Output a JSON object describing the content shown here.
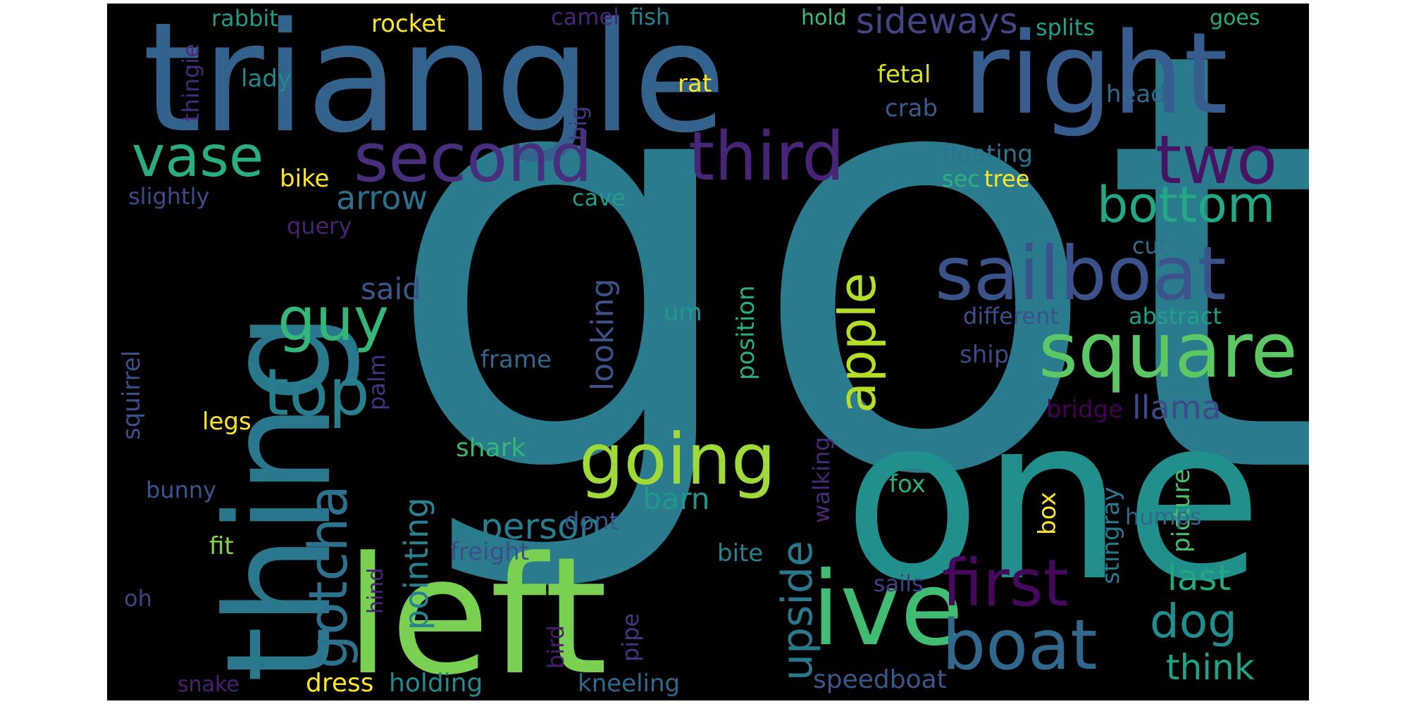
{
  "word_cloud": {
    "background": "#000000",
    "palette": [
      "#440154",
      "#472c7a",
      "#3b518b",
      "#2c718e",
      "#21908d",
      "#27ad81",
      "#5cc863",
      "#aadc32",
      "#fde725"
    ],
    "words": [
      {
        "text": "got",
        "color": "#2a7b8e"
      },
      {
        "text": "triangle",
        "color": "#33638d"
      },
      {
        "text": "one",
        "color": "#21908d"
      },
      {
        "text": "left",
        "color": "#7ad151"
      },
      {
        "text": "thing",
        "color": "#2a788e"
      },
      {
        "text": "right",
        "color": "#365d8d"
      },
      {
        "text": "ive",
        "color": "#40bd72"
      },
      {
        "text": "square",
        "color": "#5cc863"
      },
      {
        "text": "sailboat",
        "color": "#3b528b"
      },
      {
        "text": "boat",
        "color": "#31688e"
      },
      {
        "text": "going",
        "color": "#a0da39"
      },
      {
        "text": "second",
        "color": "#472f7d"
      },
      {
        "text": "third",
        "color": "#482576"
      },
      {
        "text": "first",
        "color": "#46085c"
      },
      {
        "text": "two",
        "color": "#471365"
      },
      {
        "text": "top",
        "color": "#277f8e"
      },
      {
        "text": "guy",
        "color": "#35b779"
      },
      {
        "text": "gotcha",
        "color": "#2c728e"
      },
      {
        "text": "vase",
        "color": "#29af7f"
      },
      {
        "text": "bottom",
        "color": "#22a884"
      },
      {
        "text": "apple",
        "color": "#b5de2b"
      },
      {
        "text": "upside",
        "color": "#2a788e"
      },
      {
        "text": "dog",
        "color": "#228d8d"
      },
      {
        "text": "sideways",
        "color": "#414487"
      },
      {
        "text": "llama",
        "color": "#3e4989"
      },
      {
        "text": "pointing",
        "color": "#26828e"
      },
      {
        "text": "person",
        "color": "#287c8e"
      },
      {
        "text": "last",
        "color": "#22a785"
      },
      {
        "text": "think",
        "color": "#20a386"
      },
      {
        "text": "arrow",
        "color": "#2d708e"
      },
      {
        "text": "said",
        "color": "#38588c"
      },
      {
        "text": "barn",
        "color": "#1f988b"
      },
      {
        "text": "looking",
        "color": "#3b528b"
      },
      {
        "text": "rabbit",
        "color": "#1e9c89"
      },
      {
        "text": "rocket",
        "color": "#fde725"
      },
      {
        "text": "camel",
        "color": "#482677"
      },
      {
        "text": "fish",
        "color": "#26828e"
      },
      {
        "text": "hold",
        "color": "#3dbc74"
      },
      {
        "text": "splits",
        "color": "#1fa088"
      },
      {
        "text": "goes",
        "color": "#25ab82"
      },
      {
        "text": "lady",
        "color": "#23898e"
      },
      {
        "text": "fetal",
        "color": "#d8e219"
      },
      {
        "text": "rat",
        "color": "#fde725"
      },
      {
        "text": "head",
        "color": "#31688e"
      },
      {
        "text": "crab",
        "color": "#38598c"
      },
      {
        "text": "thingie",
        "color": "#472a7a"
      },
      {
        "text": "big",
        "color": "#453781"
      },
      {
        "text": "floating",
        "color": "#2b748e"
      },
      {
        "text": "sec",
        "color": "#2db27d"
      },
      {
        "text": "tree",
        "color": "#fde725"
      },
      {
        "text": "bike",
        "color": "#fde725"
      },
      {
        "text": "slightly",
        "color": "#3e4a89"
      },
      {
        "text": "cave",
        "color": "#1f9e89"
      },
      {
        "text": "query",
        "color": "#482173"
      },
      {
        "text": "cut",
        "color": "#2e6f8e"
      },
      {
        "text": "different",
        "color": "#3b518b"
      },
      {
        "text": "abstract",
        "color": "#1fa188"
      },
      {
        "text": "um",
        "color": "#1f998a"
      },
      {
        "text": "position",
        "color": "#29af7f"
      },
      {
        "text": "frame",
        "color": "#31678e"
      },
      {
        "text": "ship",
        "color": "#3f4788"
      },
      {
        "text": "palm",
        "color": "#46327e"
      },
      {
        "text": "squirrel",
        "color": "#3b518b"
      },
      {
        "text": "bridge",
        "color": "#440154"
      },
      {
        "text": "legs",
        "color": "#fde725"
      },
      {
        "text": "shark",
        "color": "#35b779"
      },
      {
        "text": "walking",
        "color": "#482878"
      },
      {
        "text": "fox",
        "color": "#2ab07f"
      },
      {
        "text": "stingray",
        "color": "#2a788e"
      },
      {
        "text": "picture",
        "color": "#4ac16d"
      },
      {
        "text": "box",
        "color": "#fde725"
      },
      {
        "text": "bunny",
        "color": "#39568c"
      },
      {
        "text": "dont",
        "color": "#38588c"
      },
      {
        "text": "humps",
        "color": "#31678e"
      },
      {
        "text": "fit",
        "color": "#86d549"
      },
      {
        "text": "freight",
        "color": "#3e4c8a"
      },
      {
        "text": "bite",
        "color": "#26828e"
      },
      {
        "text": "hind",
        "color": "#482677"
      },
      {
        "text": "sails",
        "color": "#433d84"
      },
      {
        "text": "oh",
        "color": "#414487"
      },
      {
        "text": "bird",
        "color": "#481c6e"
      },
      {
        "text": "pipe",
        "color": "#453781"
      },
      {
        "text": "snake",
        "color": "#482173"
      },
      {
        "text": "dress",
        "color": "#fde725"
      },
      {
        "text": "holding",
        "color": "#23898e"
      },
      {
        "text": "kneeling",
        "color": "#30698e"
      },
      {
        "text": "speedboat",
        "color": "#38588c"
      }
    ]
  }
}
